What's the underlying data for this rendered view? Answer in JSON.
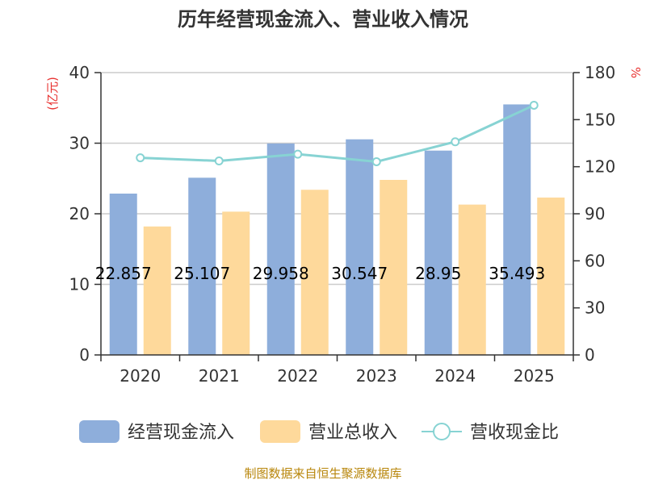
{
  "chart_data": {
    "type": "bar",
    "title": "历年经营现金流入、营业收入情况",
    "categories": [
      "2020",
      "2021",
      "2022",
      "2023",
      "2024",
      "2025"
    ],
    "series": [
      {
        "name": "经营现金流入",
        "axis": "left",
        "color": "#8eaedb",
        "values": [
          22.857,
          25.107,
          29.958,
          30.547,
          28.95,
          35.493
        ],
        "data_labels": [
          "22.857",
          "25.107",
          "29.958",
          "30.547",
          "28.95",
          "35.493"
        ]
      },
      {
        "name": "营业总收入",
        "axis": "left",
        "color": "#fed99b",
        "values": [
          18.2,
          20.3,
          23.4,
          24.8,
          21.3,
          22.3
        ]
      },
      {
        "name": "营收现金比",
        "axis": "right",
        "type": "line",
        "color": "#87d3d3",
        "values": [
          125.7,
          123.7,
          128.0,
          123.2,
          135.9,
          159.2
        ]
      }
    ],
    "y_left": {
      "label": "(亿元)",
      "min": 0,
      "max": 40,
      "ticks": [
        0,
        10,
        20,
        30,
        40
      ]
    },
    "y_right": {
      "label": "%",
      "min": 0,
      "max": 180,
      "ticks": [
        0,
        30,
        60,
        90,
        120,
        150,
        180
      ]
    },
    "grid": true,
    "legend_position": "bottom"
  },
  "source": "制图数据来自恒生聚源数据库"
}
